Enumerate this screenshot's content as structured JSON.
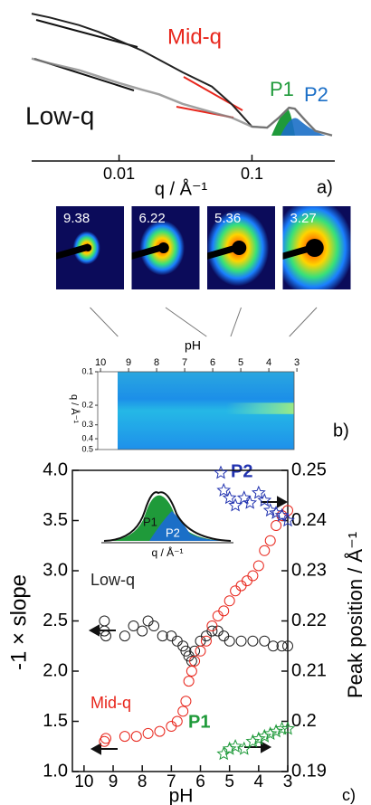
{
  "chart_data": [
    {
      "type": "line",
      "xlabel": "q / Å⁻¹",
      "xlog": true,
      "ylog": true,
      "xlim": [
        0.0022,
        0.42
      ],
      "xticks": [
        0.01,
        0.1
      ],
      "ylim": [
        0.001,
        1000
      ],
      "x": [
        0.0022,
        0.003,
        0.005,
        0.007,
        0.01,
        0.015,
        0.02,
        0.03,
        0.05,
        0.07,
        0.1,
        0.13,
        0.16,
        0.19,
        0.21,
        0.25,
        0.3,
        0.4
      ],
      "series": [
        {
          "color": "#222222",
          "values": [
            560,
            400,
            200,
            110,
            50,
            20,
            9,
            2.9,
            0.8,
            0.17,
            0.022,
            0.02,
            0.05,
            0.12,
            0.11,
            0.04,
            0.015,
            0.01
          ]
        },
        {
          "color": "#888888",
          "values": [
            10,
            6.5,
            3.5,
            2,
            1.1,
            0.6,
            0.4,
            0.17,
            0.08,
            0.05,
            0.022,
            0.02,
            0.05,
            0.12,
            0.11,
            0.04,
            0.015,
            0.01
          ]
        }
      ],
      "annotations": [
        "Low-q",
        "Mid-q",
        "P1",
        "P2"
      ],
      "panel_label": "a)"
    },
    {
      "type": "heatmap",
      "image_ph": [
        9.38,
        6.22,
        5.36,
        3.27
      ],
      "xlabel": "pH",
      "ylabel": "q / Å⁻¹",
      "xlim": [
        10.1,
        3.1
      ],
      "xticks": [
        10,
        9,
        8,
        7,
        6,
        5,
        4,
        3
      ],
      "ylim": [
        0.1,
        0.5
      ],
      "yticks": [
        0.1,
        0.2,
        0.3,
        0.4,
        0.5
      ],
      "ylog": true,
      "panel_label": "b)"
    },
    {
      "type": "scatter",
      "xlabel": "pH",
      "ylabel": "-1 × slope",
      "y2label": "Peak position / Å⁻¹",
      "xlim": [
        10.4,
        3
      ],
      "xticks": [
        10,
        9,
        8,
        7,
        6,
        5,
        4,
        3
      ],
      "ylim": [
        1,
        4
      ],
      "yticks": [
        {
          "value": 1,
          "label": "1.0"
        },
        1.5,
        {
          "value": 2,
          "label": "2.0"
        },
        2.5,
        {
          "value": 3,
          "label": "3.0"
        },
        3.5,
        {
          "value": 4,
          "label": "4.0"
        }
      ],
      "y2lim": [
        0.19,
        0.25
      ],
      "y2ticks": [
        0.19,
        0.2,
        0.21,
        0.22,
        0.23,
        0.24,
        0.25
      ],
      "series": [
        {
          "name": "Low-q",
          "color": "#222222",
          "marker": "circle",
          "x": [
            9.3,
            9.3,
            9.25,
            8.6,
            8.3,
            8.0,
            7.8,
            7.6,
            7.3,
            7.0,
            6.8,
            6.6,
            6.5,
            6.4,
            6.3,
            6.2,
            6.0,
            5.8,
            5.6,
            5.4,
            5.2,
            5.0,
            4.6,
            4.2,
            3.8,
            3.5,
            3.2,
            3.0
          ],
          "values": [
            2.5,
            2.4,
            2.35,
            2.35,
            2.45,
            2.4,
            2.5,
            2.45,
            2.35,
            2.35,
            2.3,
            2.25,
            2.2,
            2.15,
            2.1,
            2.2,
            2.3,
            2.35,
            2.4,
            2.4,
            2.35,
            2.3,
            2.3,
            2.3,
            2.3,
            2.25,
            2.25,
            2.25
          ]
        },
        {
          "name": "Mid-q",
          "color": "#e8261c",
          "marker": "circle",
          "x": [
            9.3,
            9.25,
            8.6,
            8.2,
            7.8,
            7.4,
            7.0,
            6.8,
            6.6,
            6.5,
            6.4,
            6.3,
            6.2,
            6.0,
            5.8,
            5.6,
            5.4,
            5.2,
            5.0,
            4.8,
            4.6,
            4.4,
            4.2,
            4.0,
            3.8,
            3.6,
            3.4,
            3.2,
            3.0
          ],
          "values": [
            1.3,
            1.33,
            1.35,
            1.35,
            1.38,
            1.4,
            1.45,
            1.5,
            1.6,
            1.7,
            1.9,
            2.0,
            2.1,
            2.2,
            2.3,
            2.45,
            2.55,
            2.6,
            2.7,
            2.8,
            2.85,
            2.9,
            2.95,
            3.05,
            3.2,
            3.3,
            3.45,
            3.55,
            3.6
          ]
        },
        {
          "name": "P1",
          "color": "#1f9a3a",
          "marker": "star",
          "axis": "y2",
          "x": [
            5.2,
            5.0,
            4.8,
            4.5,
            4.2,
            4.0,
            3.8,
            3.6,
            3.4,
            3.2,
            3.0
          ],
          "values": [
            0.1935,
            0.1945,
            0.195,
            0.1945,
            0.196,
            0.1965,
            0.197,
            0.1975,
            0.198,
            0.1985,
            0.1985
          ]
        },
        {
          "name": "P2",
          "color": "#2233b0",
          "marker": "star",
          "axis": "y2",
          "x": [
            5.3,
            5.2,
            5.0,
            4.8,
            4.5,
            4.3,
            4.0,
            3.8,
            3.6,
            3.4,
            3.2,
            3.0
          ],
          "values": [
            0.2495,
            0.246,
            0.2445,
            0.243,
            0.2445,
            0.2435,
            0.2455,
            0.244,
            0.242,
            0.2415,
            0.241,
            0.24
          ]
        }
      ],
      "inset": {
        "labels": [
          "P1",
          "P2"
        ],
        "xlabel": "q / Å⁻¹"
      },
      "panel_label": "c)"
    }
  ]
}
